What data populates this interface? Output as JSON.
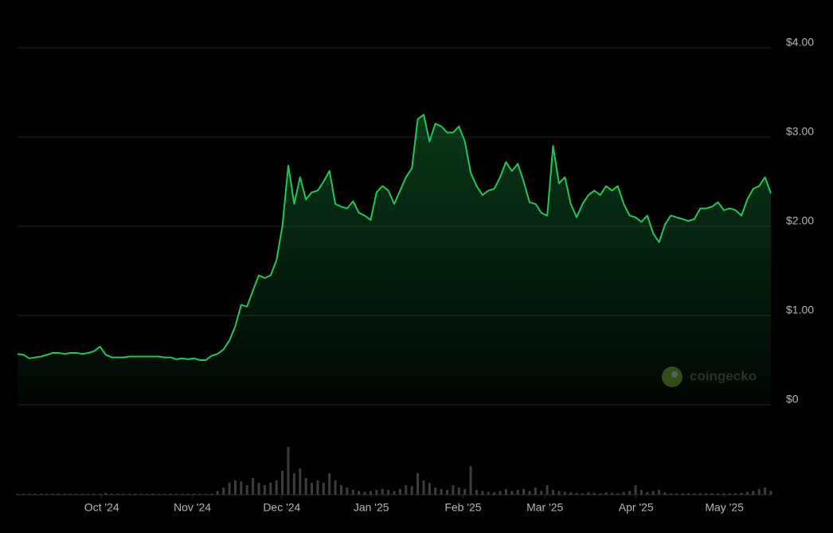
{
  "chart_data": {
    "type": "line",
    "color": "#1fc75a",
    "values": [
      0.57,
      0.56,
      0.52,
      0.53,
      0.54,
      0.56,
      0.58,
      0.58,
      0.57,
      0.58,
      0.58,
      0.57,
      0.58,
      0.6,
      0.65,
      0.56,
      0.53,
      0.53,
      0.53,
      0.54,
      0.54,
      0.54,
      0.54,
      0.54,
      0.54,
      0.53,
      0.53,
      0.51,
      0.52,
      0.51,
      0.52,
      0.5,
      0.5,
      0.55,
      0.57,
      0.62,
      0.72,
      0.88,
      1.12,
      1.1,
      1.28,
      1.45,
      1.42,
      1.45,
      1.62,
      2.0,
      2.68,
      2.25,
      2.55,
      2.3,
      2.38,
      2.4,
      2.5,
      2.62,
      2.25,
      2.22,
      2.2,
      2.28,
      2.15,
      2.12,
      2.07,
      2.38,
      2.45,
      2.4,
      2.25,
      2.4,
      2.55,
      2.65,
      3.2,
      3.25,
      2.95,
      3.15,
      3.12,
      3.05,
      3.05,
      3.12,
      2.95,
      2.6,
      2.45,
      2.35,
      2.4,
      2.42,
      2.55,
      2.72,
      2.62,
      2.7,
      2.5,
      2.27,
      2.25,
      2.15,
      2.12,
      2.9,
      2.48,
      2.55,
      2.25,
      2.1,
      2.25,
      2.35,
      2.4,
      2.35,
      2.45,
      2.4,
      2.45,
      2.25,
      2.12,
      2.1,
      2.05,
      2.12,
      1.92,
      1.82,
      2.02,
      2.12,
      2.1,
      2.08,
      2.06,
      2.08,
      2.2,
      2.2,
      2.22,
      2.27,
      2.18,
      2.2,
      2.18,
      2.12,
      2.3,
      2.42,
      2.45,
      2.55,
      2.37
    ],
    "xlim": [
      0,
      128
    ],
    "xticks": [
      {
        "value": 14.3,
        "label": "Oct '24"
      },
      {
        "value": 29.7,
        "label": "Nov '24"
      },
      {
        "value": 44.9,
        "label": "Dec '24"
      },
      {
        "value": 60.1,
        "label": "Jan '25"
      },
      {
        "value": 75.7,
        "label": "Feb '25"
      },
      {
        "value": 89.6,
        "label": "Mar '25"
      },
      {
        "value": 105.1,
        "label": "Apr '25"
      },
      {
        "value": 120.1,
        "label": "May '25"
      }
    ],
    "ylim": [
      0,
      4
    ],
    "yticks": [
      {
        "value": 0,
        "label": "$0"
      },
      {
        "value": 1,
        "label": "$1.00"
      },
      {
        "value": 2,
        "label": "$2.00"
      },
      {
        "value": 3,
        "label": "$3.00"
      },
      {
        "value": 4,
        "label": "$4.00"
      }
    ],
    "grid": true,
    "volume": {
      "color": "#3d3d3d",
      "ylim": [
        0,
        100
      ],
      "values": [
        2,
        2,
        2,
        2,
        2,
        2,
        2,
        2,
        2,
        2,
        2,
        2,
        2,
        2,
        2,
        4,
        2,
        2,
        2,
        2,
        2,
        2,
        2,
        2,
        2,
        2,
        2,
        2,
        2,
        2,
        2,
        2,
        2,
        2,
        8,
        15,
        25,
        30,
        28,
        20,
        35,
        25,
        20,
        25,
        30,
        50,
        100,
        45,
        55,
        35,
        25,
        30,
        25,
        45,
        30,
        20,
        15,
        10,
        8,
        6,
        8,
        10,
        12,
        10,
        8,
        12,
        20,
        18,
        45,
        30,
        25,
        15,
        12,
        10,
        20,
        15,
        12,
        60,
        10,
        8,
        6,
        5,
        8,
        12,
        8,
        10,
        12,
        8,
        15,
        8,
        20,
        10,
        8,
        6,
        5,
        4,
        3,
        5,
        4,
        3,
        5,
        4,
        3,
        6,
        8,
        20,
        10,
        6,
        8,
        10,
        5,
        3,
        3,
        3,
        3,
        3,
        3,
        3,
        3,
        3,
        3,
        3,
        3,
        4,
        6,
        8,
        12,
        15,
        8
      ]
    },
    "watermark": "coingecko"
  }
}
